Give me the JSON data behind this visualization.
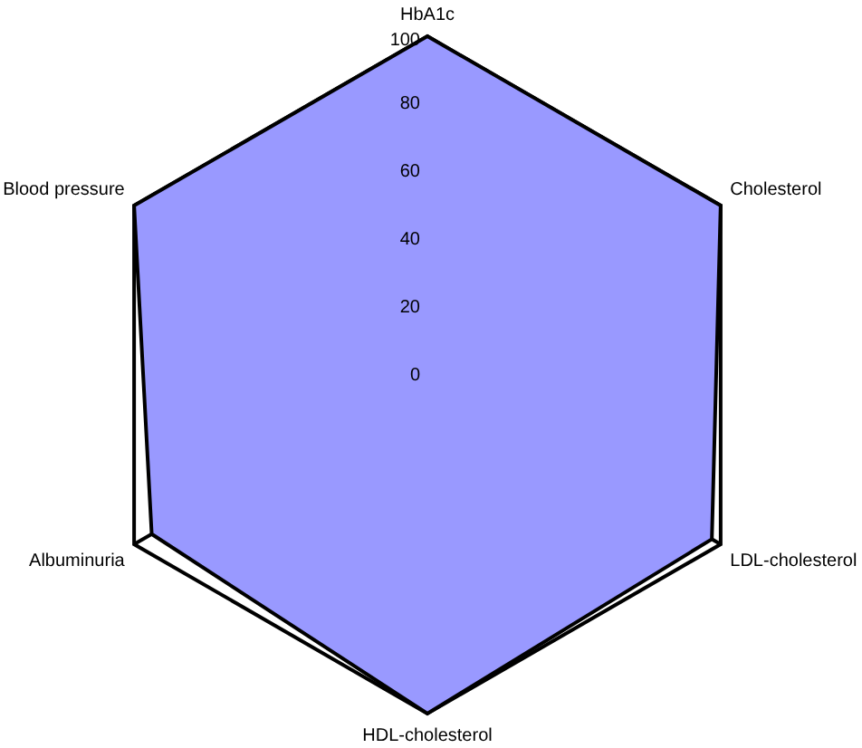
{
  "chart_data": {
    "type": "radar",
    "categories": [
      "HbA1c",
      "Cholesterol",
      "LDL-cholesterol",
      "HDL-cholesterol",
      "Albuminuria",
      "Blood pressure"
    ],
    "series": [
      {
        "color": "#9999ff",
        "values": [
          100,
          100,
          97,
          100,
          94,
          100
        ]
      }
    ],
    "ylim": [
      0,
      100
    ],
    "yticks": [
      0,
      20,
      40,
      60,
      80,
      100
    ]
  }
}
